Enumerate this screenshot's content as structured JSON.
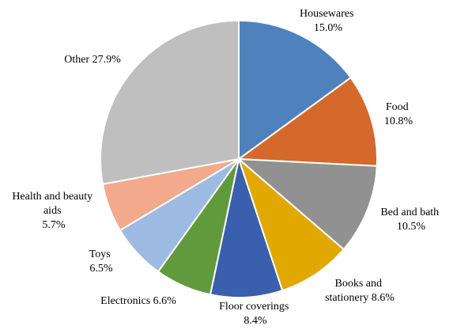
{
  "chart_data": {
    "type": "pie",
    "slices": [
      {
        "label": "Housewares",
        "value": 15.0,
        "display": "15.0%",
        "color": "#4f81bd"
      },
      {
        "label": "Food",
        "value": 10.8,
        "display": "10.8%",
        "color": "#d4692b"
      },
      {
        "label": "Bed and bath",
        "value": 10.5,
        "display": "10.5%",
        "color": "#919191"
      },
      {
        "label": "Books and stationery",
        "value": 8.6,
        "display": "8.6%",
        "color": "#e0a800"
      },
      {
        "label": "Floor coverings",
        "value": 8.4,
        "display": "8.4%",
        "color": "#3a5fad"
      },
      {
        "label": "Electronics",
        "value": 6.6,
        "display": "6.6%",
        "color": "#619a3c"
      },
      {
        "label": "Toys",
        "value": 6.5,
        "display": "6.5%",
        "color": "#9dbbe2"
      },
      {
        "label": "Health and beauty aids",
        "value": 5.7,
        "display": "5.7%",
        "color": "#f2a98c"
      },
      {
        "label": "Other",
        "value": 27.9,
        "display": "27.9%",
        "color": "#bfbfbf"
      }
    ],
    "start_angle_deg": 0,
    "direction": "clockwise",
    "legend": "none",
    "data_labels": "outside"
  }
}
